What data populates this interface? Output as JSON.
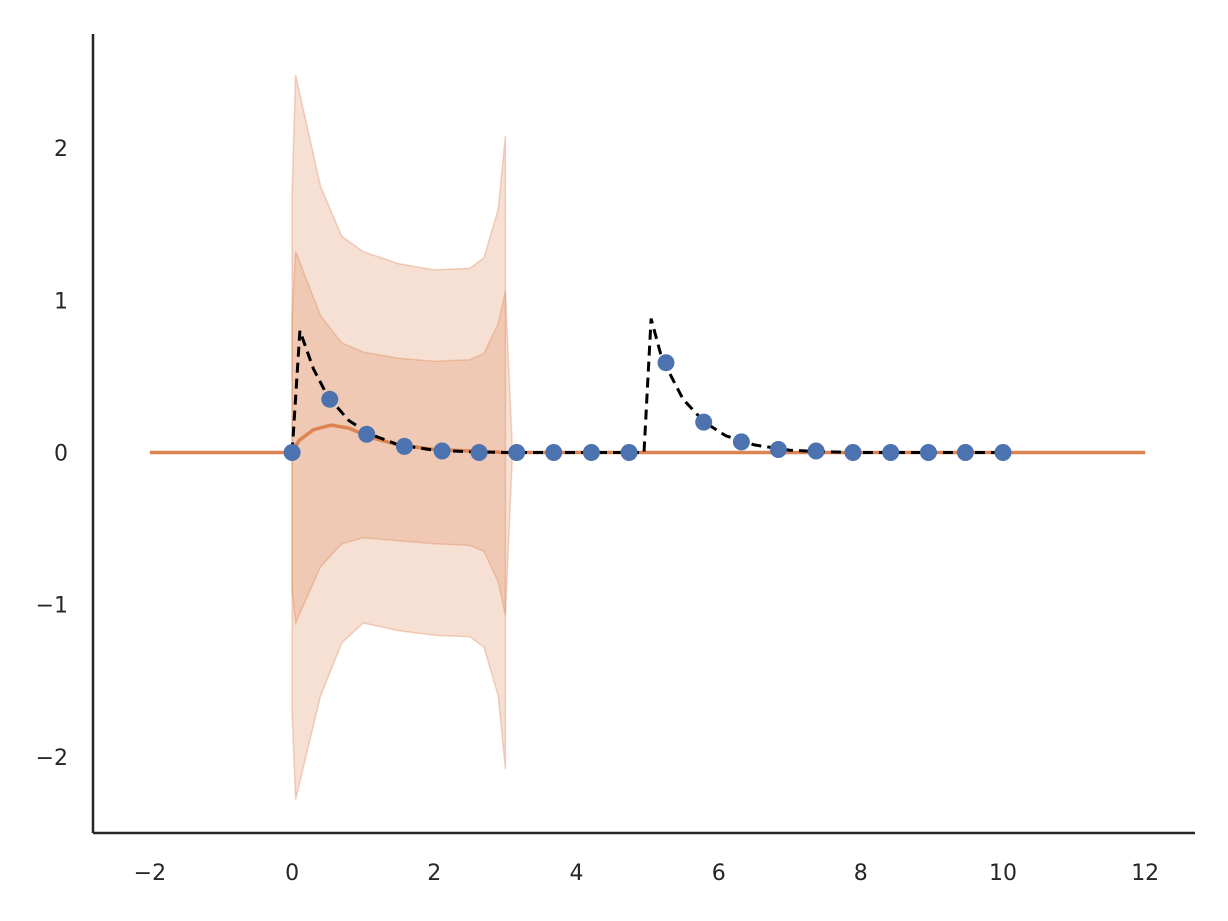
{
  "chart_data": {
    "type": "line",
    "title": "",
    "xlabel": "",
    "ylabel": "",
    "xlim": [
      -2.8,
      12.7
    ],
    "ylim": [
      -2.5,
      2.75
    ],
    "grid": false,
    "legend": "none",
    "x_ticks": [
      -2,
      0,
      2,
      4,
      6,
      8,
      10,
      12
    ],
    "y_ticks": [
      -2,
      -1,
      0,
      1,
      2
    ],
    "x_tick_labels": [
      "−2",
      "0",
      "2",
      "4",
      "6",
      "8",
      "10",
      "12"
    ],
    "y_tick_labels": [
      "−2",
      "−1",
      "0",
      "1",
      "2"
    ],
    "colors": {
      "points": "#4c72b0",
      "mean": "#dd8452",
      "band_inner": "#dd8452",
      "band_outer": "#dd8452",
      "true_signal": "#000000",
      "axis": "#262626"
    },
    "band_outer": {
      "x": [
        0,
        0.05,
        0.4,
        0.7,
        1.0,
        1.5,
        2.0,
        2.5,
        2.7,
        2.9,
        3.0
      ],
      "upper": [
        1.7,
        2.48,
        1.75,
        1.42,
        1.32,
        1.24,
        1.2,
        1.21,
        1.28,
        1.6,
        2.08
      ],
      "lower": [
        -1.7,
        -2.28,
        -1.6,
        -1.25,
        -1.12,
        -1.17,
        -1.2,
        -1.21,
        -1.28,
        -1.6,
        -2.08
      ]
    },
    "band_inner": {
      "x": [
        0,
        0.05,
        0.4,
        0.7,
        1.0,
        1.5,
        2.0,
        2.5,
        2.7,
        2.9,
        3.0,
        3.1
      ],
      "upper": [
        0.9,
        1.32,
        0.9,
        0.72,
        0.66,
        0.62,
        0.6,
        0.61,
        0.65,
        0.85,
        1.06,
        0.0
      ],
      "lower": [
        -0.9,
        -1.12,
        -0.75,
        -0.6,
        -0.56,
        -0.58,
        -0.6,
        -0.61,
        -0.65,
        -0.85,
        -1.07,
        0.0
      ]
    },
    "mean_line": {
      "x": [
        -2,
        0,
        0.1,
        0.3,
        0.55,
        0.8,
        1.1,
        1.5,
        2.0,
        2.5,
        3.0,
        4,
        6,
        8,
        10,
        12
      ],
      "y": [
        0,
        0,
        0.08,
        0.15,
        0.18,
        0.16,
        0.1,
        0.05,
        0.02,
        0.01,
        0,
        0,
        0,
        0,
        0,
        0
      ]
    },
    "true_signal": {
      "x": [
        0,
        0.11,
        0.3,
        0.5,
        0.8,
        1.1,
        1.5,
        2.0,
        2.5,
        3.0,
        3.5,
        4.0,
        4.5,
        4.95,
        5.05,
        5.2,
        5.5,
        5.8,
        6.1,
        6.5,
        7.0,
        7.5,
        8,
        9,
        10
      ],
      "y": [
        0,
        0.8,
        0.55,
        0.37,
        0.21,
        0.12,
        0.05,
        0.015,
        0.005,
        0,
        0,
        0,
        0,
        0,
        0.88,
        0.62,
        0.35,
        0.2,
        0.11,
        0.05,
        0.015,
        0.005,
        0,
        0,
        0
      ]
    },
    "points": {
      "x": [
        0,
        0.53,
        1.05,
        1.58,
        2.11,
        2.63,
        3.16,
        3.68,
        4.21,
        4.74,
        5.26,
        5.79,
        6.32,
        6.84,
        7.37,
        7.89,
        8.42,
        8.95,
        9.47,
        10.0
      ],
      "y": [
        0,
        0.35,
        0.12,
        0.04,
        0.01,
        0.0,
        0,
        0,
        0,
        0,
        0.59,
        0.2,
        0.07,
        0.02,
        0.01,
        0,
        0,
        0,
        0,
        0
      ]
    }
  }
}
